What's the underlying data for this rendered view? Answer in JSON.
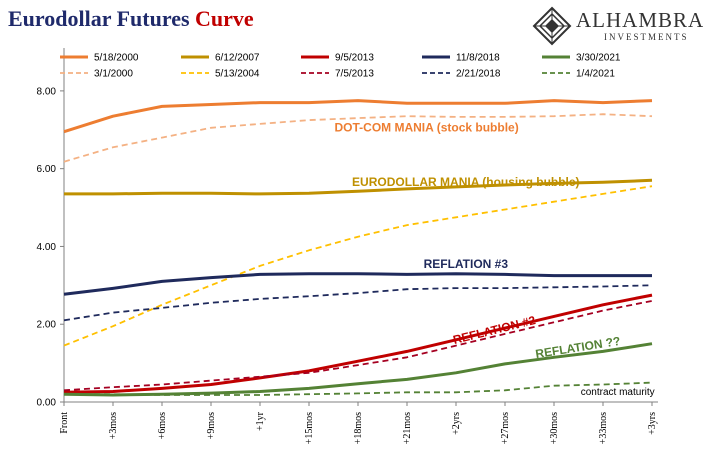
{
  "header": {
    "title_part1": "Eurodollar Futures",
    "title_part2": "Curve",
    "brand_name": "ALHAMBRA",
    "brand_sub": "INVESTMENTS"
  },
  "chart_data": {
    "type": "line",
    "xlabel": "",
    "ylabel": "",
    "ylim": [
      0,
      9
    ],
    "yticks": [
      "0.00",
      "2.00",
      "4.00",
      "6.00",
      "8.00"
    ],
    "ytick_values": [
      0,
      2,
      4,
      6,
      8
    ],
    "categories": [
      "Front",
      "+3mos",
      "+6mos",
      "+9mos",
      "+1yr",
      "+15mos",
      "+18mos",
      "+21mos",
      "+2yrs",
      "+27mos",
      "+30mos",
      "+33mos",
      "+3yrs"
    ],
    "grid": false,
    "legend_position": "top",
    "series": [
      {
        "name": "5/18/2000",
        "color": "#ed7d31",
        "style": "solid",
        "values": [
          6.95,
          7.35,
          7.6,
          7.65,
          7.7,
          7.7,
          7.75,
          7.68,
          7.68,
          7.68,
          7.75,
          7.7,
          7.75
        ]
      },
      {
        "name": "3/1/2000",
        "color": "#f4b183",
        "style": "dashed",
        "values": [
          6.18,
          6.55,
          6.8,
          7.05,
          7.15,
          7.25,
          7.3,
          7.35,
          7.33,
          7.33,
          7.35,
          7.4,
          7.35
        ]
      },
      {
        "name": "6/12/2007",
        "color": "#bf9000",
        "style": "solid",
        "values": [
          5.35,
          5.35,
          5.37,
          5.37,
          5.35,
          5.37,
          5.42,
          5.48,
          5.53,
          5.58,
          5.62,
          5.65,
          5.7
        ]
      },
      {
        "name": "5/13/2004",
        "color": "#ffc000",
        "style": "dashed",
        "values": [
          1.45,
          1.95,
          2.5,
          3.0,
          3.5,
          3.9,
          4.25,
          4.55,
          4.75,
          4.95,
          5.15,
          5.35,
          5.55
        ]
      },
      {
        "name": "9/5/2013",
        "color": "#c00000",
        "style": "solid",
        "values": [
          0.25,
          0.27,
          0.35,
          0.45,
          0.62,
          0.8,
          1.05,
          1.3,
          1.6,
          1.9,
          2.2,
          2.5,
          2.75
        ]
      },
      {
        "name": "7/5/2013",
        "color": "#a50021",
        "style": "dashed",
        "values": [
          0.3,
          0.38,
          0.45,
          0.55,
          0.65,
          0.75,
          0.95,
          1.15,
          1.45,
          1.75,
          2.05,
          2.35,
          2.6
        ]
      },
      {
        "name": "11/8/2018",
        "color": "#1f2a5c",
        "style": "solid",
        "values": [
          2.77,
          2.92,
          3.1,
          3.2,
          3.28,
          3.3,
          3.3,
          3.28,
          3.3,
          3.28,
          3.25,
          3.25,
          3.25
        ]
      },
      {
        "name": "2/21/2018",
        "color": "#1f2a5c",
        "style": "dashed",
        "values": [
          2.1,
          2.3,
          2.42,
          2.55,
          2.65,
          2.72,
          2.8,
          2.9,
          2.93,
          2.93,
          2.95,
          2.97,
          3.0
        ]
      },
      {
        "name": "3/30/2021",
        "color": "#548235",
        "style": "solid",
        "values": [
          0.2,
          0.18,
          0.2,
          0.23,
          0.27,
          0.35,
          0.47,
          0.58,
          0.75,
          0.98,
          1.15,
          1.3,
          1.5
        ]
      },
      {
        "name": "1/4/2021",
        "color": "#548235",
        "style": "dashed",
        "values": [
          0.2,
          0.2,
          0.18,
          0.18,
          0.18,
          0.2,
          0.22,
          0.25,
          0.25,
          0.3,
          0.42,
          0.45,
          0.5
        ]
      }
    ],
    "annotations": [
      {
        "text": "DOT-COM MANIA (stock bubble)",
        "color": "#ed7d31",
        "x_index": 7.4,
        "y": 6.95
      },
      {
        "text": "EURODOLLAR MANIA (housing bubble)",
        "color": "#bf9000",
        "x_index": 8.2,
        "y": 5.55
      },
      {
        "text": "REFLATION #3",
        "color": "#1f2a5c",
        "x_index": 8.2,
        "y": 3.45
      },
      {
        "text": "REFLATION #2",
        "color": "#c00000",
        "x_index": 8.8,
        "y": 1.75,
        "rotate": -14
      },
      {
        "text": "REFLATION ??",
        "color": "#548235",
        "x_index": 10.5,
        "y": 1.3,
        "rotate": -9
      },
      {
        "text": "contract maturity",
        "color": "#000000",
        "x_index": 11.3,
        "y": 0.18,
        "plain": true
      }
    ]
  }
}
